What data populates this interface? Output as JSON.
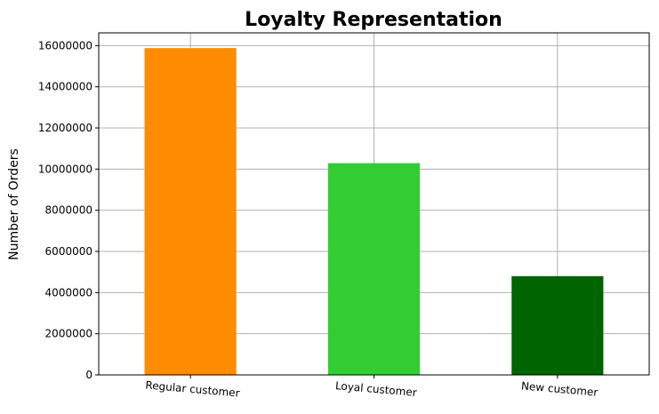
{
  "chart_data": {
    "type": "bar",
    "title": "Loyalty Representation",
    "xlabel": "",
    "ylabel": "Number of Orders",
    "categories": [
      "Regular customer",
      "Loyal customer",
      "New customer"
    ],
    "values": [
      15880000,
      10290000,
      4800000
    ],
    "colors": [
      "#ff8c00",
      "#32cd32",
      "#006400"
    ],
    "ylim": [
      0,
      16620000
    ],
    "yticks": [
      0,
      2000000,
      4000000,
      6000000,
      8000000,
      10000000,
      12000000,
      14000000,
      16000000
    ],
    "ytick_labels": [
      "0",
      "2000000",
      "4000000",
      "6000000",
      "8000000",
      "10000000",
      "12000000",
      "14000000",
      "16000000"
    ],
    "grid": true,
    "grid_color": "#b0b0b0",
    "xtick_rotation_deg": 5
  }
}
